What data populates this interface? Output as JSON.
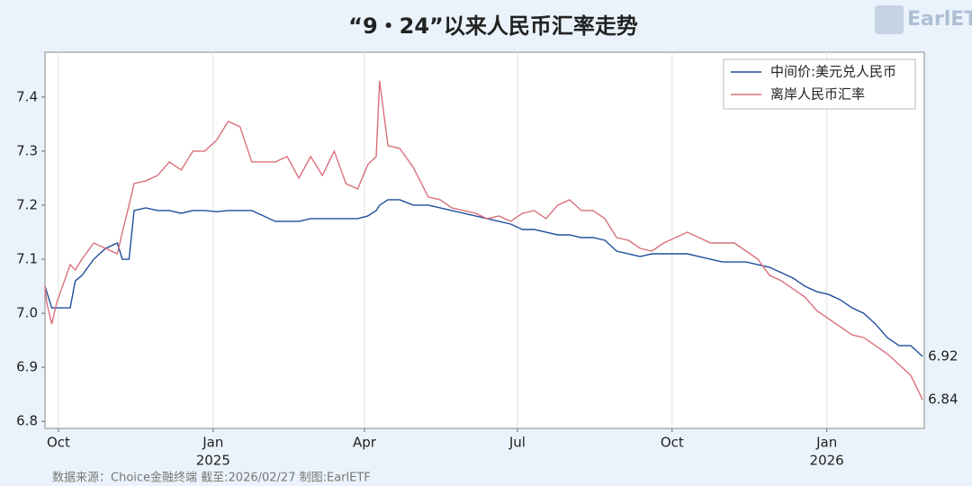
{
  "chart_data": {
    "type": "line",
    "title": "“9・24”以来人民币汇率走势",
    "logo": "EarlETF",
    "source": "数据来源：Choice金融终端 截至:2026/02/27 制图:EarlETF",
    "x": [
      "2024-09-23",
      "2024-09-24",
      "2024-09-27",
      "2024-09-30",
      "2024-10-08",
      "2024-10-11",
      "2024-10-15",
      "2024-10-22",
      "2024-10-29",
      "2024-11-05",
      "2024-11-08",
      "2024-11-12",
      "2024-11-15",
      "2024-11-22",
      "2024-11-29",
      "2024-12-06",
      "2024-12-13",
      "2024-12-20",
      "2024-12-27",
      "2025-01-03",
      "2025-01-10",
      "2025-01-17",
      "2025-01-24",
      "2025-02-07",
      "2025-02-14",
      "2025-02-21",
      "2025-02-28",
      "2025-03-07",
      "2025-03-14",
      "2025-03-21",
      "2025-03-28",
      "2025-04-03",
      "2025-04-08",
      "2025-04-10",
      "2025-04-15",
      "2025-04-22",
      "2025-04-30",
      "2025-05-09",
      "2025-05-16",
      "2025-05-23",
      "2025-05-30",
      "2025-06-06",
      "2025-06-13",
      "2025-06-20",
      "2025-06-27",
      "2025-07-04",
      "2025-07-11",
      "2025-07-18",
      "2025-07-25",
      "2025-08-01",
      "2025-08-08",
      "2025-08-15",
      "2025-08-22",
      "2025-08-29",
      "2025-09-05",
      "2025-09-12",
      "2025-09-19",
      "2025-09-26",
      "2025-10-10",
      "2025-10-17",
      "2025-10-24",
      "2025-10-31",
      "2025-11-07",
      "2025-11-14",
      "2025-11-21",
      "2025-11-28",
      "2025-12-05",
      "2025-12-12",
      "2025-12-19",
      "2025-12-26",
      "2026-01-02",
      "2026-01-09",
      "2026-01-16",
      "2026-01-23",
      "2026-01-30",
      "2026-02-06",
      "2026-02-13",
      "2026-02-20",
      "2026-02-27"
    ],
    "series": [
      {
        "name": "中间价:美元兑人民币",
        "color": "#1f4e9c",
        "values": [
          7.05,
          7.04,
          7.01,
          7.01,
          7.01,
          7.06,
          7.07,
          7.1,
          7.12,
          7.13,
          7.1,
          7.1,
          7.19,
          7.195,
          7.19,
          7.19,
          7.185,
          7.19,
          7.19,
          7.188,
          7.19,
          7.19,
          7.19,
          7.17,
          7.17,
          7.17,
          7.175,
          7.175,
          7.175,
          7.175,
          7.175,
          7.18,
          7.19,
          7.2,
          7.21,
          7.21,
          7.2,
          7.2,
          7.195,
          7.19,
          7.185,
          7.18,
          7.175,
          7.17,
          7.165,
          7.155,
          7.155,
          7.15,
          7.145,
          7.145,
          7.14,
          7.14,
          7.135,
          7.115,
          7.11,
          7.105,
          7.11,
          7.11,
          7.11,
          7.105,
          7.1,
          7.095,
          7.095,
          7.095,
          7.09,
          7.085,
          7.075,
          7.065,
          7.05,
          7.04,
          7.035,
          7.025,
          7.01,
          7.0,
          6.98,
          6.955,
          6.94,
          6.94,
          6.92
        ]
      },
      {
        "name": "离岸人民币汇率",
        "color": "#d9707c",
        "values": [
          7.05,
          7.02,
          6.98,
          7.02,
          7.09,
          7.08,
          7.1,
          7.13,
          7.12,
          7.11,
          7.15,
          7.2,
          7.24,
          7.245,
          7.255,
          7.28,
          7.265,
          7.3,
          7.3,
          7.32,
          7.355,
          7.345,
          7.28,
          7.28,
          7.29,
          7.25,
          7.29,
          7.255,
          7.3,
          7.24,
          7.23,
          7.275,
          7.29,
          7.43,
          7.31,
          7.305,
          7.27,
          7.215,
          7.21,
          7.195,
          7.19,
          7.185,
          7.175,
          7.18,
          7.17,
          7.185,
          7.19,
          7.175,
          7.2,
          7.21,
          7.19,
          7.19,
          7.175,
          7.14,
          7.135,
          7.12,
          7.115,
          7.13,
          7.15,
          7.14,
          7.13,
          7.13,
          7.13,
          7.115,
          7.1,
          7.07,
          7.06,
          7.045,
          7.03,
          7.005,
          6.99,
          6.975,
          6.96,
          6.955,
          6.94,
          6.925,
          6.905,
          6.885,
          6.84
        ]
      }
    ],
    "xlim": [
      "2024-09-23",
      "2026-02-28"
    ],
    "xticks": [
      {
        "value": "2024-10-01",
        "label": "Oct"
      },
      {
        "value": "2025-01-01",
        "label": "Jan"
      },
      {
        "value": "2025-04-01",
        "label": "Apr"
      },
      {
        "value": "2025-07-01",
        "label": "Jul"
      },
      {
        "value": "2025-10-01",
        "label": "Oct"
      },
      {
        "value": "2026-01-01",
        "label": "Jan"
      }
    ],
    "xyears": [
      {
        "value": "2025-01-01",
        "label": "2025"
      },
      {
        "value": "2026-01-01",
        "label": "2026"
      }
    ],
    "ylim": [
      6.787,
      7.483
    ],
    "yticks": [
      6.8,
      6.9,
      {
        "value": 7,
        "label": "7.0"
      },
      7.1,
      7.2,
      7.3,
      7.4
    ],
    "grid": "x",
    "legend": "upper right"
  }
}
